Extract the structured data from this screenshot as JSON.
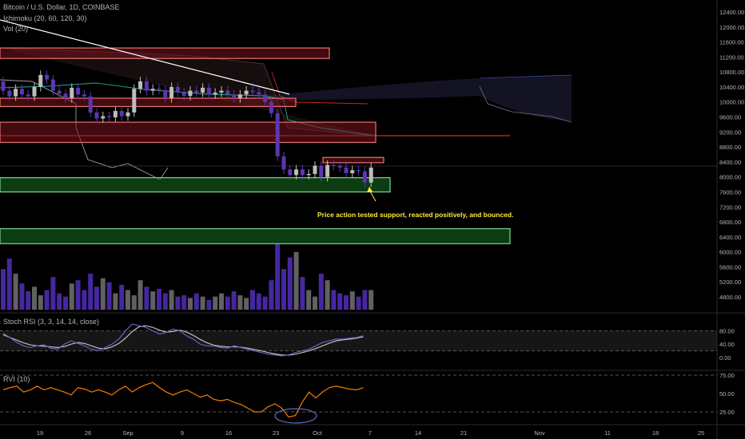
{
  "header": {
    "title": "Bitcoin / U.S. Dollar, 1D, COINBASE",
    "indicators": [
      "Ichimoku (20, 60, 120, 30)",
      "Vol (20)"
    ]
  },
  "annotation": {
    "text": "Price action tested support, reacted positively, and bounced.",
    "color": "#ffeb3b"
  },
  "colors": {
    "background": "#000000",
    "resistance_zone": "#e57373",
    "support_zone": "#7bd88f",
    "bull_candle": "#bdbdbd",
    "bear_candle": "#5e35b1",
    "stoch_k": "#7e57c2",
    "stoch_d": "#bdbdbd",
    "rvi": "#f57c00",
    "circle": "#5c6bc0"
  },
  "price_axis": {
    "ticks": [
      "12400.00",
      "12000.00",
      "11600.00",
      "11200.00",
      "10800.00",
      "10400.00",
      "10000.00",
      "9600.00",
      "9200.00",
      "8800.00",
      "8400.00",
      "8000.00",
      "7600.00",
      "7200.00",
      "6800.00",
      "6400.00",
      "6000.00",
      "5600.00",
      "5200.00",
      "4800.00"
    ]
  },
  "stoch_panel": {
    "label": "Stoch RSI (3, 3, 14, 14, close)",
    "ticks": [
      "80.00",
      "40.00",
      "0.00"
    ]
  },
  "rvi_panel": {
    "label": "RVI (10)",
    "ticks": [
      "75.00",
      "50.00",
      "25.00"
    ]
  },
  "time_axis": {
    "ticks": [
      "19",
      "26",
      "Sep",
      "9",
      "16",
      "23",
      "Oct",
      "7",
      "14",
      "21",
      "Nov",
      "11",
      "18",
      "25"
    ]
  },
  "chart_data": {
    "type": "candlestick",
    "symbol": "Bitcoin / U.S. Dollar",
    "interval": "1D",
    "exchange": "COINBASE",
    "price_range": [
      4600,
      12600
    ],
    "resistance_zones": [
      [
        11160,
        11440
      ],
      [
        9880,
        10100
      ],
      [
        8920,
        9460
      ],
      [
        8380,
        8520
      ]
    ],
    "support_zones": [
      [
        7600,
        7980
      ],
      [
        6220,
        6620
      ]
    ],
    "candles": [
      {
        "o": 10550,
        "c": 10300
      },
      {
        "o": 10300,
        "c": 10150
      },
      {
        "o": 10150,
        "c": 10350
      },
      {
        "o": 10350,
        "c": 10200
      },
      {
        "o": 10200,
        "c": 10150
      },
      {
        "o": 10150,
        "c": 10400
      },
      {
        "o": 10400,
        "c": 10720
      },
      {
        "o": 10720,
        "c": 10600
      },
      {
        "o": 10600,
        "c": 10300
      },
      {
        "o": 10300,
        "c": 10220
      },
      {
        "o": 10220,
        "c": 10100
      },
      {
        "o": 10100,
        "c": 10380
      },
      {
        "o": 10380,
        "c": 10200
      },
      {
        "o": 10200,
        "c": 10150
      },
      {
        "o": 10150,
        "c": 9720
      },
      {
        "o": 9720,
        "c": 9560
      },
      {
        "o": 9560,
        "c": 9620
      },
      {
        "o": 9620,
        "c": 9590
      },
      {
        "o": 9590,
        "c": 9760
      },
      {
        "o": 9760,
        "c": 9620
      },
      {
        "o": 9620,
        "c": 9720
      },
      {
        "o": 9720,
        "c": 10350
      },
      {
        "o": 10350,
        "c": 10550
      },
      {
        "o": 10550,
        "c": 10300
      },
      {
        "o": 10300,
        "c": 10350
      },
      {
        "o": 10350,
        "c": 10320
      },
      {
        "o": 10320,
        "c": 10100
      },
      {
        "o": 10100,
        "c": 10400
      },
      {
        "o": 10400,
        "c": 10250
      },
      {
        "o": 10250,
        "c": 10160
      },
      {
        "o": 10160,
        "c": 10300
      },
      {
        "o": 10300,
        "c": 10250
      },
      {
        "o": 10250,
        "c": 10380
      },
      {
        "o": 10380,
        "c": 10200
      },
      {
        "o": 10200,
        "c": 10250
      },
      {
        "o": 10250,
        "c": 10300
      },
      {
        "o": 10300,
        "c": 10200
      },
      {
        "o": 10200,
        "c": 10100
      },
      {
        "o": 10100,
        "c": 10200
      },
      {
        "o": 10200,
        "c": 10300
      },
      {
        "o": 10300,
        "c": 10260
      },
      {
        "o": 10260,
        "c": 10200
      },
      {
        "o": 10200,
        "c": 10000
      },
      {
        "o": 10000,
        "c": 9700
      },
      {
        "o": 9700,
        "c": 8550
      },
      {
        "o": 8550,
        "c": 8200
      },
      {
        "o": 8200,
        "c": 8050
      },
      {
        "o": 8050,
        "c": 8200
      },
      {
        "o": 8200,
        "c": 8050
      },
      {
        "o": 8050,
        "c": 8080
      },
      {
        "o": 8080,
        "c": 8300
      },
      {
        "o": 8300,
        "c": 8000
      },
      {
        "o": 8000,
        "c": 8320
      },
      {
        "o": 8320,
        "c": 8300
      },
      {
        "o": 8300,
        "c": 8250
      },
      {
        "o": 8250,
        "c": 8100
      },
      {
        "o": 8100,
        "c": 8180
      },
      {
        "o": 8180,
        "c": 8150
      },
      {
        "o": 8150,
        "c": 7850
      },
      {
        "o": 7850,
        "c": 8250
      }
    ],
    "volume_relative": [
      0.62,
      0.78,
      0.55,
      0.4,
      0.28,
      0.35,
      0.22,
      0.3,
      0.5,
      0.25,
      0.2,
      0.4,
      0.45,
      0.3,
      0.55,
      0.35,
      0.48,
      0.42,
      0.25,
      0.38,
      0.3,
      0.22,
      0.45,
      0.35,
      0.28,
      0.32,
      0.25,
      0.3,
      0.2,
      0.22,
      0.18,
      0.25,
      0.2,
      0.15,
      0.2,
      0.25,
      0.2,
      0.28,
      0.22,
      0.18,
      0.3,
      0.25,
      0.2,
      0.45,
      1.0,
      0.62,
      0.8,
      0.88,
      0.5,
      0.3,
      0.2,
      0.55,
      0.45,
      0.3,
      0.25,
      0.22,
      0.28,
      0.2,
      0.3,
      0.3
    ],
    "stoch_k": [
      72,
      60,
      45,
      35,
      30,
      35,
      38,
      28,
      25,
      40,
      50,
      42,
      35,
      25,
      20,
      30,
      40,
      55,
      80,
      100,
      95,
      90,
      80,
      70,
      75,
      85,
      80,
      65,
      55,
      40,
      35,
      35,
      30,
      28,
      35,
      30,
      25,
      20,
      15,
      10,
      8,
      5,
      8,
      15,
      20,
      25,
      35,
      45,
      50,
      55,
      55,
      58,
      60,
      65
    ],
    "stoch_d": [
      68,
      60,
      52,
      44,
      38,
      35,
      34,
      32,
      30,
      33,
      40,
      45,
      42,
      35,
      28,
      26,
      32,
      42,
      58,
      78,
      92,
      95,
      90,
      82,
      76,
      78,
      82,
      76,
      66,
      54,
      44,
      37,
      34,
      32,
      32,
      31,
      28,
      24,
      20,
      15,
      11,
      8,
      7,
      10,
      15,
      20,
      27,
      35,
      43,
      50,
      53,
      55,
      58,
      62
    ],
    "rvi": [
      55,
      58,
      60,
      52,
      55,
      60,
      55,
      58,
      55,
      52,
      48,
      58,
      56,
      52,
      55,
      52,
      48,
      55,
      60,
      52,
      58,
      62,
      65,
      58,
      52,
      48,
      52,
      55,
      50,
      45,
      48,
      42,
      40,
      42,
      38,
      35,
      30,
      25,
      25,
      32,
      36,
      30,
      18,
      20,
      38,
      52,
      44,
      52,
      58,
      60,
      58,
      56,
      55,
      58
    ]
  }
}
